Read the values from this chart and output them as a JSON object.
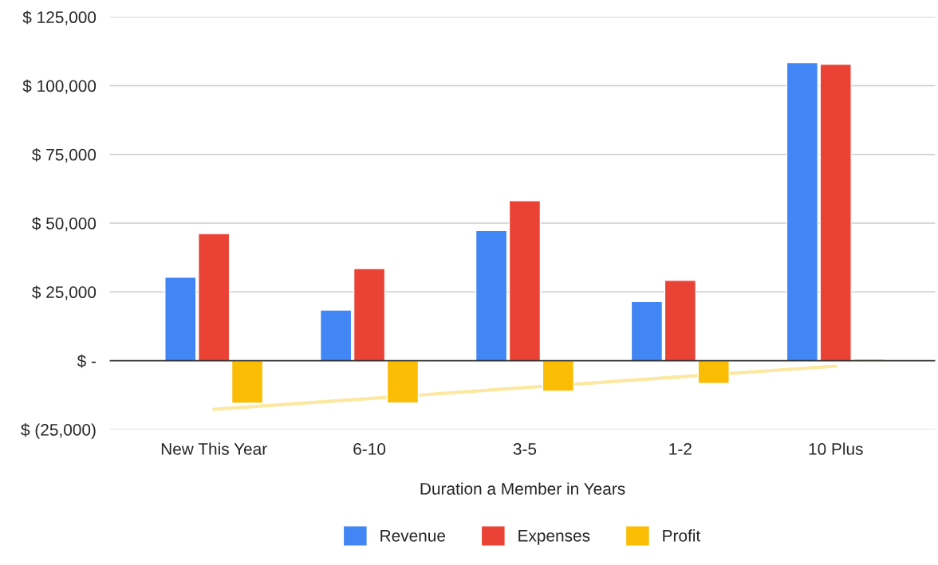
{
  "chart_data": {
    "type": "bar",
    "xlabel": "Duration a Member in Years",
    "categories": [
      "New This Year",
      "6-10",
      "3-5",
      "1-2",
      "10 Plus"
    ],
    "series": [
      {
        "name": "Revenue",
        "color": "#4285f4",
        "values": [
          30400,
          18400,
          47300,
          21500,
          108400
        ]
      },
      {
        "name": "Expenses",
        "color": "#ea4335",
        "values": [
          46200,
          33500,
          58200,
          29200,
          107800
        ]
      },
      {
        "name": "Profit",
        "color": "#fbbc04",
        "values": [
          -15500,
          -15400,
          -11100,
          -8300,
          600
        ]
      },
      {
        "type": "line",
        "color": "#fce8a0",
        "values": [
          -17700,
          -13800,
          -9800,
          -5900,
          -2000
        ]
      }
    ],
    "ylim": [
      -25000,
      125000
    ],
    "yticks": [
      {
        "value": -25000,
        "label": "$ (25,000)"
      },
      {
        "value": 0,
        "label": "$ -"
      },
      {
        "value": 25000,
        "label": "$ 25,000"
      },
      {
        "value": 50000,
        "label": "$ 50,000"
      },
      {
        "value": 75000,
        "label": "$ 75,000"
      },
      {
        "value": 100000,
        "label": "$ 100,000"
      },
      {
        "value": 125000,
        "label": "$ 125,000"
      }
    ],
    "grid": "y",
    "legend": "bottom"
  }
}
